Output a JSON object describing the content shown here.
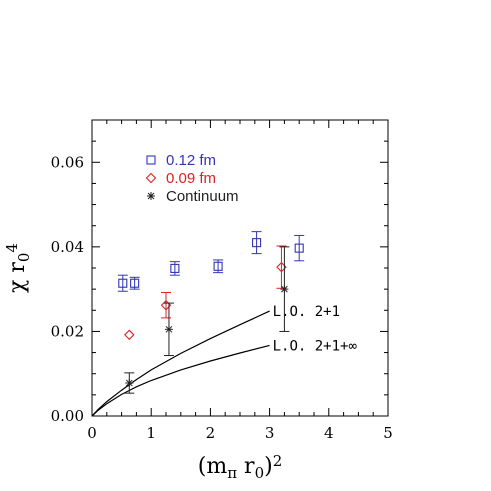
{
  "chart_data": {
    "type": "scatter",
    "xlabel_parts": {
      "open": "(m",
      "sub_pi": "π",
      "mid": " r",
      "sub_0": "0",
      "close": ")",
      "sup": "2"
    },
    "ylabel_parts": {
      "chi": "χ",
      "mid": " r",
      "sub_0": "0",
      "sup": "4"
    },
    "xlim": [
      0,
      5
    ],
    "ylim": [
      0,
      0.07
    ],
    "xticks": [
      0,
      1,
      2,
      3,
      4,
      5
    ],
    "xtick_labels": [
      "0",
      "1",
      "2",
      "3",
      "4",
      "5"
    ],
    "yticks": [
      0,
      0.02,
      0.04,
      0.06
    ],
    "ytick_labels": [
      "0.00",
      "0.02",
      "0.04",
      "0.06"
    ],
    "legend_position": "top-left",
    "series": [
      {
        "name": "0.12 fm",
        "marker": "square",
        "color": "#3333bb",
        "points": [
          {
            "x": 0.52,
            "y": 0.0314,
            "err": 0.0019
          },
          {
            "x": 0.72,
            "y": 0.0314,
            "err": 0.0014
          },
          {
            "x": 1.4,
            "y": 0.0349,
            "err": 0.0016
          },
          {
            "x": 2.13,
            "y": 0.0354,
            "err": 0.0015
          },
          {
            "x": 2.78,
            "y": 0.041,
            "err": 0.0026
          },
          {
            "x": 3.5,
            "y": 0.0397,
            "err": 0.003
          }
        ]
      },
      {
        "name": "0.09 fm",
        "marker": "diamond",
        "color": "#dd2222",
        "points": [
          {
            "x": 0.63,
            "y": 0.0192,
            "err": 0.0
          },
          {
            "x": 1.25,
            "y": 0.0262,
            "err": 0.003
          },
          {
            "x": 3.2,
            "y": 0.0352,
            "err": 0.005
          }
        ]
      },
      {
        "name": "Continuum",
        "marker": "burst",
        "color": "#222222",
        "points": [
          {
            "x": 0.63,
            "y": 0.0078,
            "err": 0.0024
          },
          {
            "x": 1.3,
            "y": 0.0205,
            "err": 0.0062
          },
          {
            "x": 3.25,
            "y": 0.03,
            "err": 0.01
          }
        ]
      }
    ],
    "curves": [
      {
        "label": "L.O. 2+1",
        "color": "#000000",
        "points": [
          [
            0,
            0
          ],
          [
            0.1,
            0.0015
          ],
          [
            0.25,
            0.0034
          ],
          [
            0.5,
            0.0061
          ],
          [
            0.75,
            0.0086
          ],
          [
            1.0,
            0.0109
          ],
          [
            1.5,
            0.0148
          ],
          [
            2.0,
            0.0183
          ],
          [
            2.5,
            0.0216
          ],
          [
            3.0,
            0.0248
          ]
        ]
      },
      {
        "label": "L.O. 2+1+∞",
        "color": "#000000",
        "points": [
          [
            0,
            0
          ],
          [
            0.1,
            0.0013
          ],
          [
            0.25,
            0.0029
          ],
          [
            0.5,
            0.0051
          ],
          [
            0.75,
            0.0069
          ],
          [
            1.0,
            0.0084
          ],
          [
            1.5,
            0.0109
          ],
          [
            2.0,
            0.013
          ],
          [
            2.5,
            0.0149
          ],
          [
            3.0,
            0.0167
          ]
        ]
      }
    ]
  }
}
